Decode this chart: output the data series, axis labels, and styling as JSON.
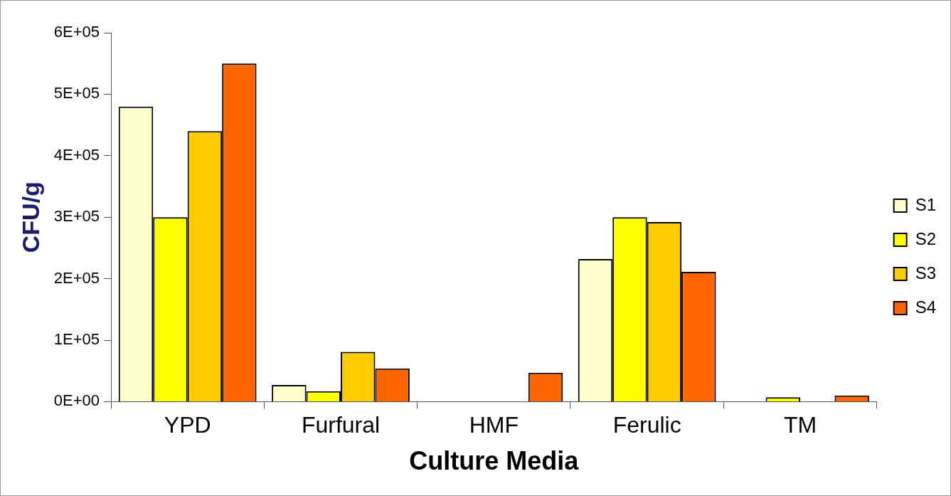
{
  "chart_data": {
    "type": "bar",
    "xlabel": "Culture Media",
    "ylabel": "CFU/g",
    "categories": [
      "YPD",
      "Furfural",
      "HMF",
      "Ferulic",
      "TM"
    ],
    "series": [
      {
        "name": "S1",
        "color": "#ffffcc",
        "values": [
          480000,
          27000,
          0,
          232000,
          0
        ]
      },
      {
        "name": "S2",
        "color": "#ffff00",
        "values": [
          300000,
          17000,
          0,
          300000,
          7000
        ]
      },
      {
        "name": "S3",
        "color": "#ffcc00",
        "values": [
          440000,
          81000,
          0,
          292000,
          0
        ]
      },
      {
        "name": "S4",
        "color": "#ff6600",
        "values": [
          550000,
          54000,
          47000,
          211000,
          10000
        ]
      }
    ],
    "ylim": [
      0,
      600000
    ],
    "yticks": [
      {
        "value": 0,
        "label": "0E+00"
      },
      {
        "value": 100000,
        "label": "1E+05"
      },
      {
        "value": 200000,
        "label": "2E+05"
      },
      {
        "value": 300000,
        "label": "3E+05"
      },
      {
        "value": 400000,
        "label": "4E+05"
      },
      {
        "value": 500000,
        "label": "5E+05"
      },
      {
        "value": 600000,
        "label": "6E+05"
      }
    ],
    "grid": false,
    "legend": "right"
  }
}
